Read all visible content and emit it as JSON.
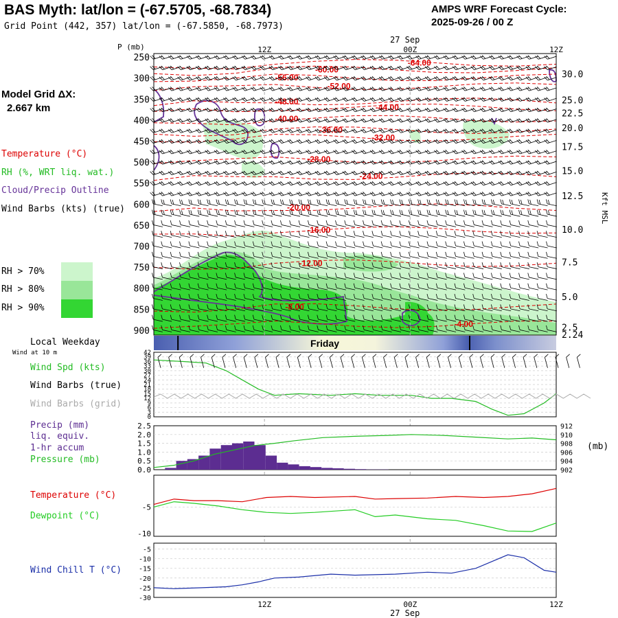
{
  "header": {
    "title": "BAS Myth:  lat/lon = (-67.5705, -68.7834)",
    "grid_point": "Grid Point (442, 357) lat/lon = (-67.5850, -68.7973)",
    "forecast_line1": "AMPS WRF Forecast Cycle:",
    "forecast_line2": "2025-09-26 / 00  Z"
  },
  "model_grid": {
    "label": "Model Grid ΔX:",
    "value": "2.667 km"
  },
  "legend": {
    "temperature": "Temperature (°C)",
    "rh": "RH (%, WRT liq. wat.)",
    "cloud": "Cloud/Precip Outline",
    "wind_barbs": "Wind Barbs (kts) (true)",
    "rh70": "RH > 70%",
    "rh80": "RH > 80%",
    "rh90": "RH > 90%"
  },
  "colors": {
    "temperature": "#dd0000",
    "rh70": "#ccf5cc",
    "rh80": "#99e699",
    "rh90": "#33d633",
    "cloud": "#663399",
    "wind": "#000000",
    "wind_grid": "#aaaaaa",
    "speed": "#22bb22",
    "dewpoint": "#22cc22",
    "precip": "#5c2d91",
    "windchill": "#1a2ea8"
  },
  "time_axis": {
    "top_date": "27 Sep",
    "bottom_date": "27 Sep",
    "ticks": [
      {
        "label": "12Z",
        "pos": 0.275
      },
      {
        "label": "00Z",
        "pos": 0.637
      },
      {
        "label": "12Z",
        "pos": 1.0
      }
    ]
  },
  "weekday": {
    "label": "Local Weekday",
    "day": "Friday",
    "wind_label": "Wind at 10 m"
  },
  "chart_data": [
    {
      "type": "heatmap",
      "title": "Vertical cross-section (time vs pressure)",
      "ylabel": "P (mb)",
      "y2label": "Kft MSL",
      "yticks": [
        250,
        300,
        350,
        400,
        450,
        500,
        550,
        600,
        650,
        700,
        750,
        800,
        850,
        900
      ],
      "ylim": [
        910,
        240
      ],
      "y2ticks": [
        {
          "label": "30.0",
          "p": 290
        },
        {
          "label": "25.0",
          "p": 352
        },
        {
          "label": "22.5",
          "p": 383
        },
        {
          "label": "20.0",
          "p": 418
        },
        {
          "label": "17.5",
          "p": 463
        },
        {
          "label": "15.0",
          "p": 520
        },
        {
          "label": "12.5",
          "p": 580
        },
        {
          "label": "10.0",
          "p": 660
        },
        {
          "label": "7.5",
          "p": 738
        },
        {
          "label": "5.0",
          "p": 820
        },
        {
          "label": "2.5",
          "p": 893
        },
        {
          "label": "2.24",
          "p": 910
        }
      ],
      "isotherm_labels": [
        {
          "text": "-64.00",
          "t": 0.66,
          "p": 262
        },
        {
          "text": "-60.00",
          "t": 0.43,
          "p": 278
        },
        {
          "text": "-56.00",
          "t": 0.33,
          "p": 297
        },
        {
          "text": "-52.00",
          "t": 0.46,
          "p": 318
        },
        {
          "text": "-48.00",
          "t": 0.33,
          "p": 354
        },
        {
          "text": "-44.00",
          "t": 0.58,
          "p": 368
        },
        {
          "text": "-40.00",
          "t": 0.33,
          "p": 395
        },
        {
          "text": "-36.00",
          "t": 0.44,
          "p": 422
        },
        {
          "text": "-32.00",
          "t": 0.57,
          "p": 440
        },
        {
          "text": "-28.00",
          "t": 0.41,
          "p": 492
        },
        {
          "text": "-24.00",
          "t": 0.54,
          "p": 532
        },
        {
          "text": "-20.00",
          "t": 0.36,
          "p": 606
        },
        {
          "text": "-16.00",
          "t": 0.41,
          "p": 660
        },
        {
          "text": "-12.00",
          "t": 0.39,
          "p": 739
        },
        {
          "text": "-8.00",
          "t": 0.35,
          "p": 843
        },
        {
          "text": "-4.00",
          "t": 0.77,
          "p": 884
        }
      ]
    },
    {
      "type": "line",
      "title": "Wind Spd (kts)",
      "labels": [
        "Wind Spd (kts)",
        "Wind Barbs (true)",
        "Wind Barbs (grid)"
      ],
      "yticks": [
        0,
        3,
        6,
        9,
        12,
        15,
        18,
        21,
        24,
        27,
        30,
        33,
        36,
        39,
        42
      ],
      "ylim": [
        0,
        42
      ],
      "x": [
        0,
        0.07,
        0.13,
        0.18,
        0.22,
        0.26,
        0.3,
        0.36,
        0.44,
        0.5,
        0.56,
        0.64,
        0.69,
        0.74,
        0.8,
        0.84,
        0.88,
        0.92,
        0.97,
        1.0
      ],
      "values": [
        37,
        36,
        35,
        30,
        24,
        18,
        14,
        15,
        14,
        15,
        14,
        14,
        12,
        12,
        10,
        5,
        1,
        2,
        9,
        15
      ]
    },
    {
      "type": "bar",
      "title": "Precip / Pressure",
      "labels": [
        "Precip (mm)",
        "liq. equiv.",
        "1-hr accum",
        "Pressure (mb)"
      ],
      "yticks": [
        "0.0",
        "0.5",
        "1.0",
        "1.5",
        "2.0",
        "2.5"
      ],
      "ylim": [
        0,
        2.5
      ],
      "y2ticks": [
        "902",
        "904",
        "906",
        "908",
        "910",
        "912"
      ],
      "y2label": "(mb)",
      "y2lim": [
        902,
        912
      ],
      "precip_values": [
        0.1,
        0.5,
        0.6,
        0.8,
        1.2,
        1.4,
        1.5,
        1.6,
        1.4,
        0.8,
        0.4,
        0.3,
        0.2,
        0.15,
        0.1,
        0.08,
        0.05,
        0.03,
        0.01,
        0.01,
        0.0
      ],
      "pressure_x": [
        0,
        0.05,
        0.1,
        0.15,
        0.2,
        0.25,
        0.3,
        0.35,
        0.42,
        0.5,
        0.58,
        0.64,
        0.72,
        0.8,
        0.88,
        0.94,
        1.0
      ],
      "pressure_values": [
        902.5,
        903.0,
        904.0,
        905.5,
        906.5,
        907.5,
        908.0,
        908.6,
        909.3,
        909.6,
        909.8,
        910.0,
        909.8,
        909.4,
        909.0,
        909.2,
        908.8
      ]
    },
    {
      "type": "line",
      "title": "Temperature / Dewpoint",
      "labels": [
        "Temperature (°C)",
        "Dewpoint (°C)"
      ],
      "yticks": [
        "-5",
        "-10"
      ],
      "ylim": [
        -10.5,
        1
      ],
      "x": [
        0,
        0.05,
        0.1,
        0.16,
        0.22,
        0.28,
        0.34,
        0.4,
        0.5,
        0.55,
        0.6,
        0.68,
        0.75,
        0.82,
        0.88,
        0.94,
        1.0
      ],
      "temperature": [
        -4.5,
        -3.5,
        -3.8,
        -3.8,
        -4.0,
        -3.2,
        -3.0,
        -3.2,
        -3.0,
        -3.5,
        -3.4,
        -3.3,
        -3.0,
        -3.2,
        -3.0,
        -2.5,
        -1.5
      ],
      "dewpoint": [
        -5.0,
        -4.0,
        -4.3,
        -4.8,
        -5.5,
        -6.0,
        -6.2,
        -6.0,
        -5.5,
        -6.8,
        -6.5,
        -7.2,
        -7.5,
        -8.5,
        -9.5,
        -9.6,
        -8.0
      ]
    },
    {
      "type": "line",
      "title": "Wind Chill T (°C)",
      "labels": [
        "Wind Chill T (°C)"
      ],
      "yticks": [
        "-5",
        "-10",
        "-15",
        "-20",
        "-25",
        "-30"
      ],
      "ylim": [
        -30,
        -2
      ],
      "x": [
        0,
        0.05,
        0.12,
        0.18,
        0.22,
        0.26,
        0.3,
        0.36,
        0.44,
        0.5,
        0.6,
        0.68,
        0.74,
        0.8,
        0.84,
        0.88,
        0.92,
        0.97,
        1.0
      ],
      "values": [
        -25,
        -25.5,
        -25,
        -24.5,
        -23.5,
        -22,
        -20,
        -19.5,
        -18,
        -18.5,
        -18,
        -17,
        -17.5,
        -15,
        -11.5,
        -8,
        -9.5,
        -16,
        -17
      ]
    }
  ]
}
